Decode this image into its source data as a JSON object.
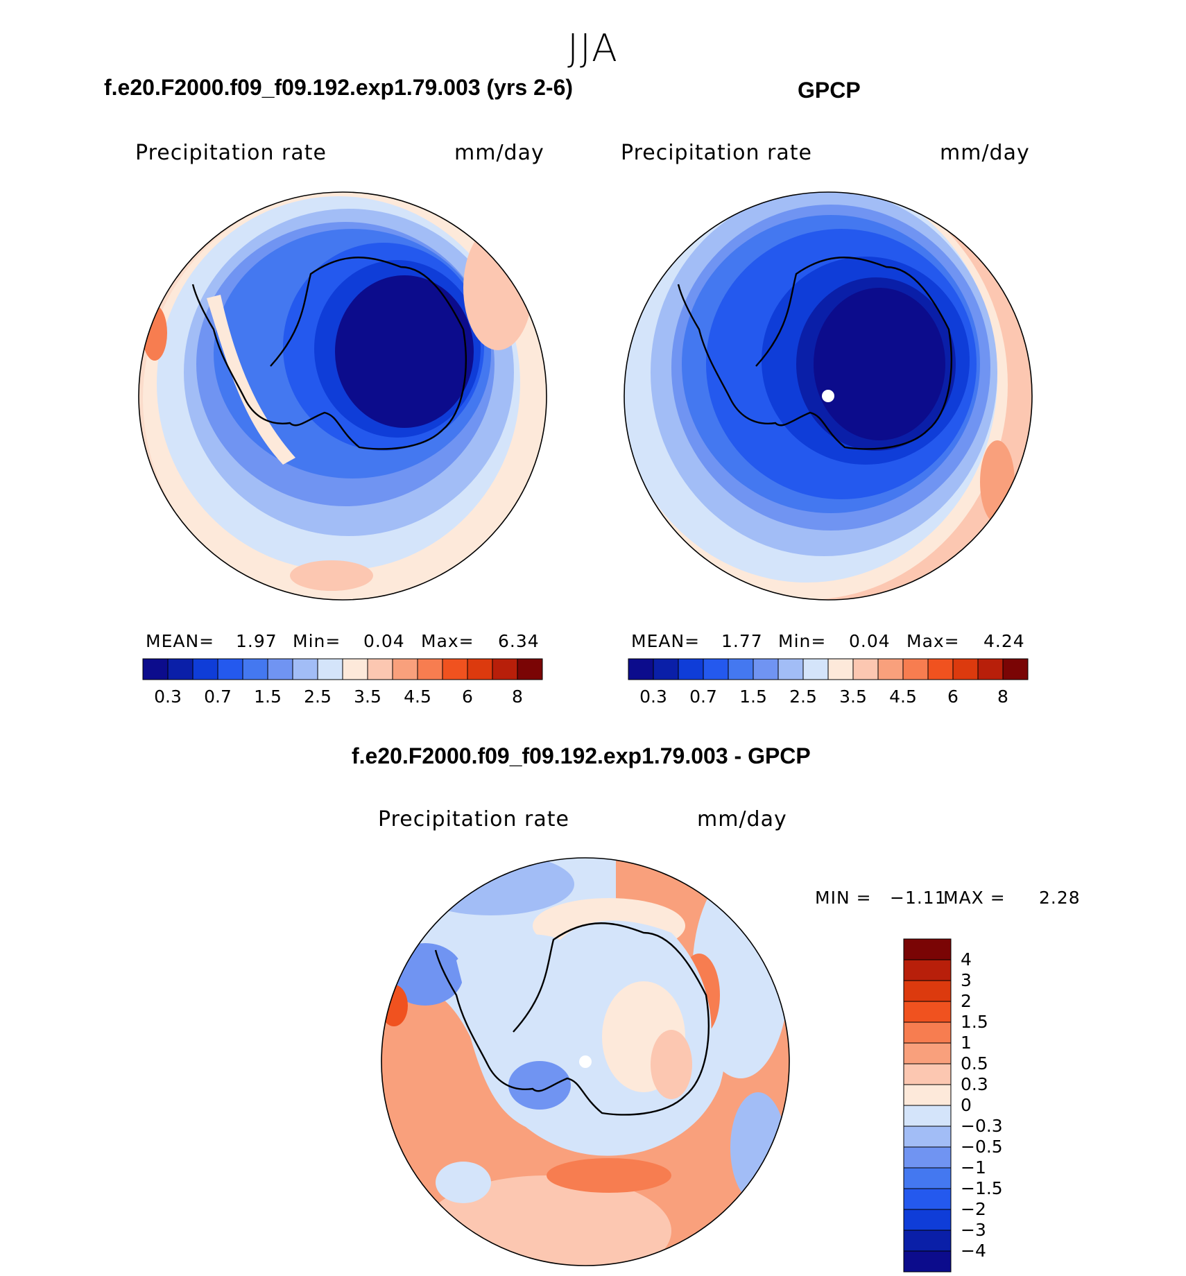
{
  "season": "JJA",
  "panels": {
    "model": {
      "title": "f.e20.F2000.f09_f09.192.exp1.79.003 (yrs 2-6)",
      "variable": "Precipitation rate",
      "units": "mm/day",
      "stats": {
        "mean_label": "MEAN=",
        "mean": "1.97",
        "min_label": "Min=",
        "min": "0.04",
        "max_label": "Max=",
        "max": "6.34"
      }
    },
    "obs": {
      "title": "GPCP",
      "variable": "Precipitation rate",
      "units": "mm/day",
      "stats": {
        "mean_label": "MEAN=",
        "mean": "1.77",
        "min_label": "Min=",
        "min": "0.04",
        "max_label": "Max=",
        "max": "4.24"
      }
    },
    "diff": {
      "title": "f.e20.F2000.f09_f09.192.exp1.79.003 - GPCP",
      "variable": "Precipitation rate",
      "units": "mm/day",
      "stats": {
        "min_label": "MIN =",
        "min": "−1.11",
        "max_label": "MAX =",
        "max": "2.28"
      }
    }
  },
  "colorbar_main": {
    "colors": [
      "#0c0c8c",
      "#0a1fa8",
      "#0f3dd8",
      "#2459ee",
      "#4478f0",
      "#7094f2",
      "#a2bdf6",
      "#d4e4fa",
      "#fde9da",
      "#fcc7b1",
      "#f9a07c",
      "#f77d50",
      "#f0521f",
      "#dc3a0e",
      "#b81f0a",
      "#7a0505"
    ],
    "tick_labels": [
      "0.3",
      "0.7",
      "1.5",
      "2.5",
      "3.5",
      "4.5",
      "6",
      "8"
    ]
  },
  "colorbar_diff": {
    "colors": [
      "#7a0505",
      "#b81f0a",
      "#dc3a0e",
      "#f0521f",
      "#f77d50",
      "#f9a07c",
      "#fcc7b1",
      "#fde9da",
      "#d4e4fa",
      "#a2bdf6",
      "#7094f2",
      "#4478f0",
      "#2459ee",
      "#0f3dd8",
      "#0a1fa8",
      "#0c0c8c"
    ],
    "tick_labels": [
      "4",
      "3",
      "2",
      "1.5",
      "1",
      "0.5",
      "0.3",
      "0",
      "−0.3",
      "−0.5",
      "−1",
      "−1.5",
      "−2",
      "−3",
      "−4"
    ]
  }
}
